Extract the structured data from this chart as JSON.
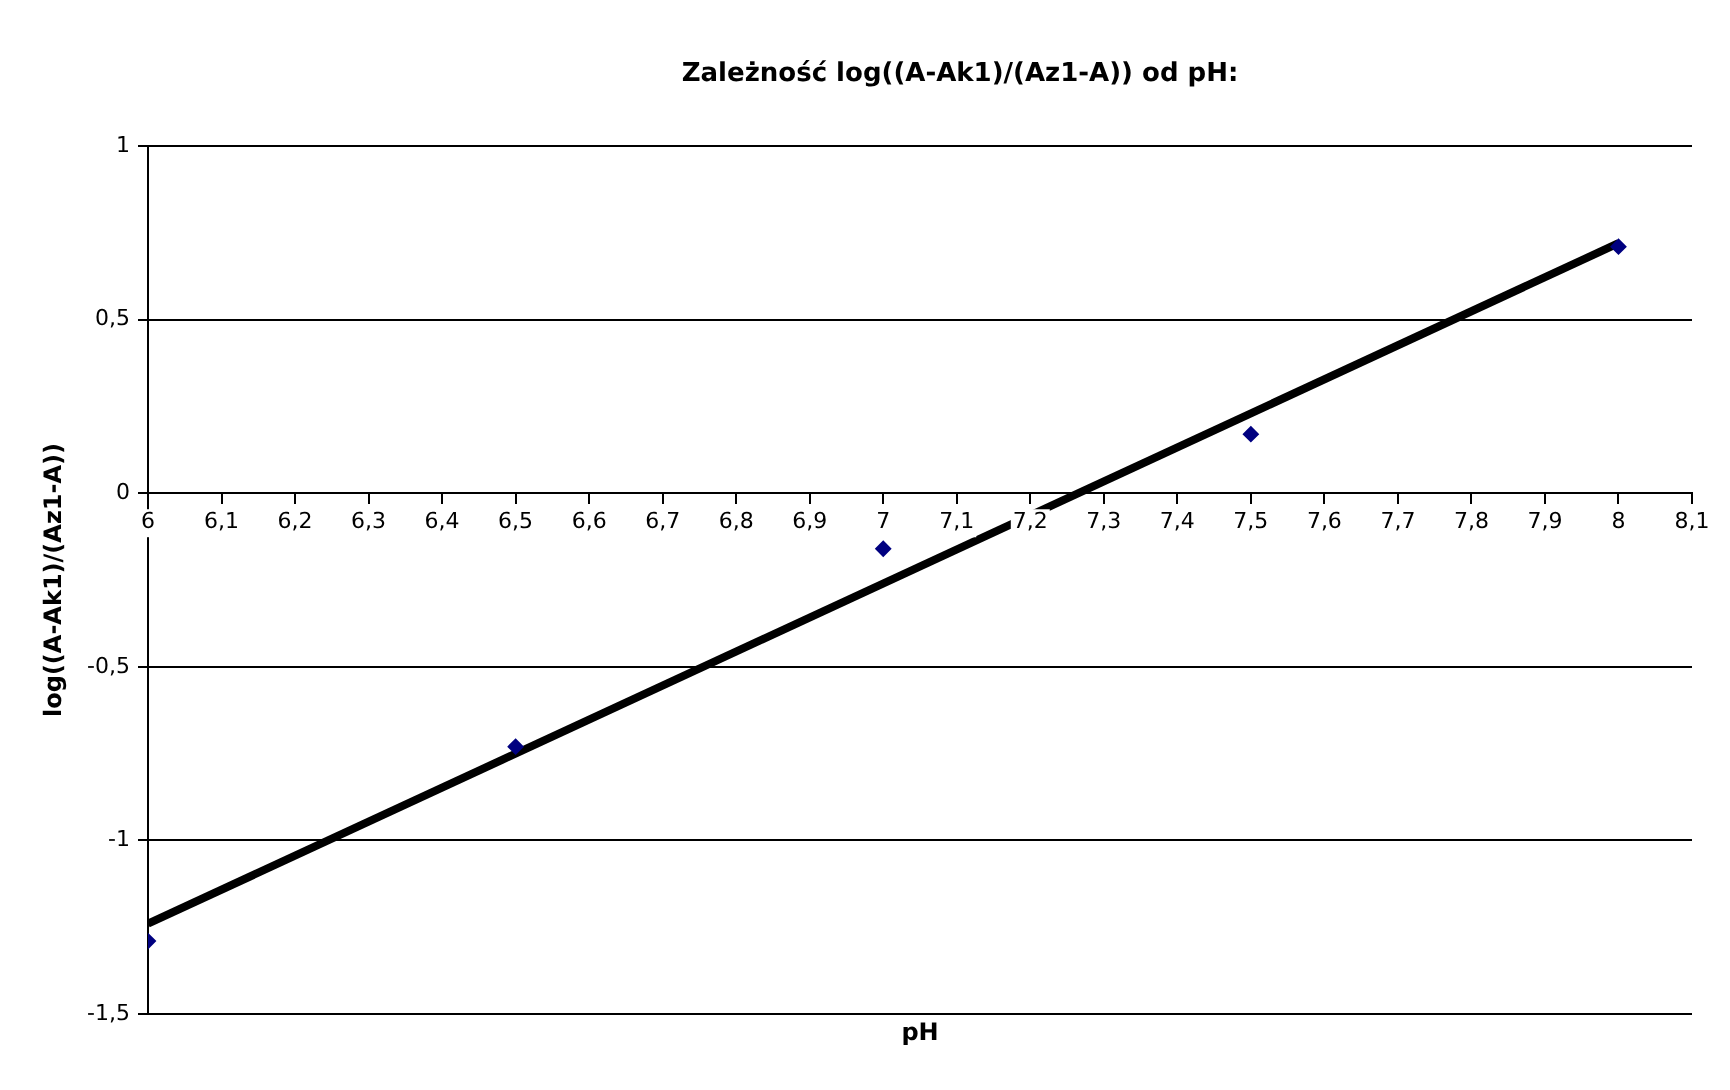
{
  "chart_data": {
    "type": "scatter",
    "title": "Zależność log((A-Ak1)/(Az1-A)) od pH:",
    "xlabel": "pH",
    "ylabel": "log((A-Ak1)/(Az1-A))",
    "xlim": [
      6,
      8.1
    ],
    "xticks": [
      6,
      {
        "value": 6.1,
        "label": "6,1"
      },
      {
        "value": 6.2,
        "label": "6,2"
      },
      {
        "value": 6.3,
        "label": "6,3"
      },
      {
        "value": 6.4,
        "label": "6,4"
      },
      {
        "value": 6.5,
        "label": "6,5"
      },
      {
        "value": 6.6,
        "label": "6,6"
      },
      {
        "value": 6.7,
        "label": "6,7"
      },
      {
        "value": 6.8,
        "label": "6,8"
      },
      {
        "value": 6.9,
        "label": "6,9"
      },
      7,
      {
        "value": 7.1,
        "label": "7,1"
      },
      {
        "value": 7.2,
        "label": "7,2"
      },
      {
        "value": 7.3,
        "label": "7,3"
      },
      {
        "value": 7.4,
        "label": "7,4"
      },
      {
        "value": 7.5,
        "label": "7,5"
      },
      {
        "value": 7.6,
        "label": "7,6"
      },
      {
        "value": 7.7,
        "label": "7,7"
      },
      {
        "value": 7.8,
        "label": "7,8"
      },
      {
        "value": 7.9,
        "label": "7,9"
      },
      8,
      {
        "value": 8.1,
        "label": "8,1"
      }
    ],
    "ylim": [
      -1.5,
      1
    ],
    "yticks": [
      {
        "value": -1.5,
        "label": "-1,5"
      },
      -1,
      {
        "value": -0.5,
        "label": "-0,5"
      },
      0,
      {
        "value": 0.5,
        "label": "0,5"
      },
      1
    ],
    "grid": "y",
    "marker": "diamond",
    "series": [
      {
        "type": "scatter",
        "color": "#000080",
        "x": [
          6,
          6.5,
          7,
          7.5,
          8
        ],
        "values": [
          -1.29,
          -0.73,
          -0.16,
          0.17,
          0.71
        ]
      },
      {
        "type": "line",
        "color": "#000000",
        "marker": "none",
        "x": [
          6,
          8
        ],
        "values": [
          -1.24,
          0.72
        ]
      }
    ]
  }
}
